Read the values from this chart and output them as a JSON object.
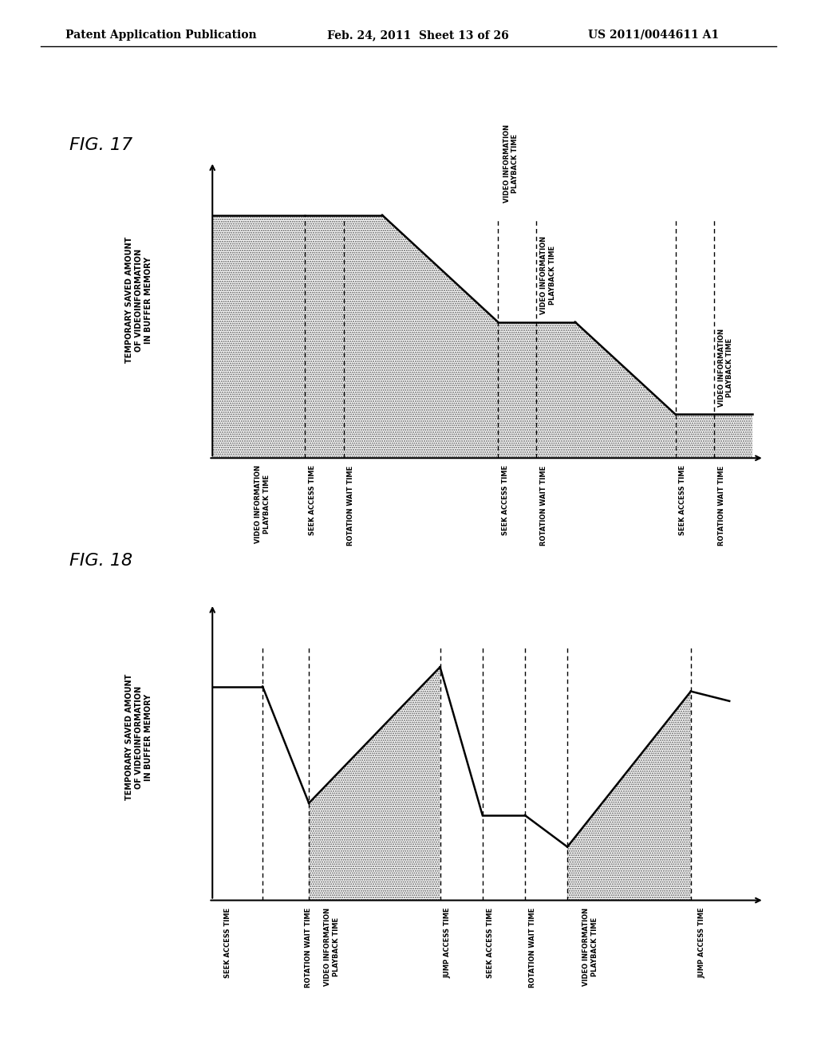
{
  "header_left": "Patent Application Publication",
  "header_mid": "Feb. 24, 2011  Sheet 13 of 26",
  "header_right": "US 2011/0044611 A1",
  "fig17": {
    "title": "FIG. 17",
    "ylabel": "TEMPORARY SAVED AMOUNT\nOF VIDEOINFORMATION\nIN BUFFER MEMORY"
  },
  "fig18": {
    "title": "FIG. 18",
    "ylabel": "TEMPORARY SAVED AMOUNT\nOF VIDEOINFORMATION\nIN BUFFER MEMORY"
  }
}
